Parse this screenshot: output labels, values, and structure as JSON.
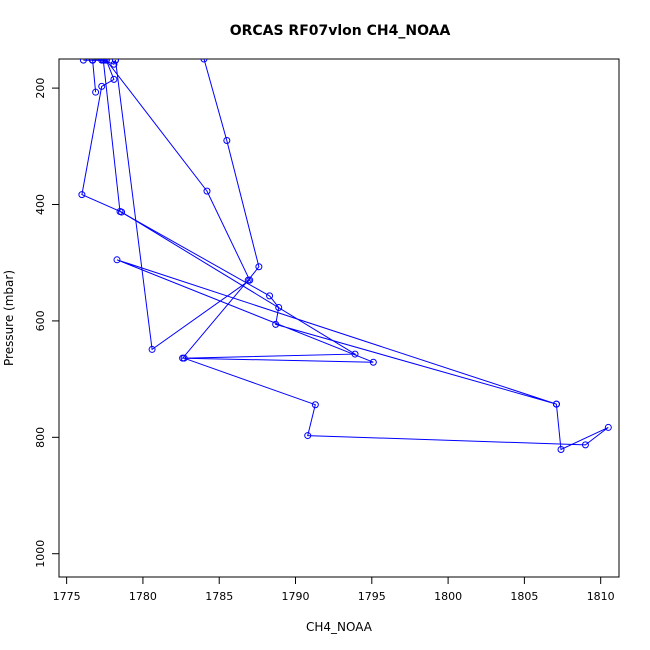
{
  "chart_data": {
    "type": "line",
    "title": "ORCAS RF07vlon CH4_NOAA",
    "xlabel": "CH4_NOAA",
    "ylabel": "Pressure (mbar)",
    "xlim": [
      1774.5,
      1811.2
    ],
    "ylim": [
      1040,
      150
    ],
    "y_inverted": true,
    "grid": false,
    "xticks": [
      1775,
      1780,
      1785,
      1790,
      1795,
      1800,
      1805,
      1810
    ],
    "yticks": [
      200,
      400,
      600,
      800,
      1000
    ],
    "color": "#0000ff",
    "series": [
      {
        "x": [
          1784.0,
          1785.5,
          1787.6,
          1786.9,
          1782.6,
          1793.9,
          1778.6,
          1776.0,
          1777.3,
          1778.1,
          1777.6,
          1777.4,
          1778.1,
          1778.2
        ],
        "y": [
          150,
          290,
          507,
          530,
          664,
          657,
          413,
          383,
          197,
          185,
          152,
          152,
          159,
          152
        ],
        "show_points": true
      },
      {
        "x": [
          1778.2,
          1780.6,
          1787.0,
          1784.2,
          1777.6,
          1777.3,
          1776.7,
          1776.9,
          1776.7
        ],
        "y": [
          152,
          649,
          530,
          377,
          152,
          152,
          152,
          207,
          152
        ],
        "show_points": true
      },
      {
        "x": [
          1776.7,
          1776.1,
          1776.7,
          1777.5,
          1777.4,
          1778.5,
          1788.3,
          1788.9,
          1788.7,
          1807.1,
          1807.4,
          1810.5,
          1809.0,
          1790.8,
          1791.3,
          1782.7,
          1795.1,
          1778.3,
          1807.1
        ],
        "y": [
          152,
          152,
          152,
          152,
          152,
          412,
          557,
          577,
          606,
          743,
          821,
          783,
          813,
          797,
          744,
          664,
          671,
          495,
          743
        ],
        "show_points": true
      }
    ]
  }
}
